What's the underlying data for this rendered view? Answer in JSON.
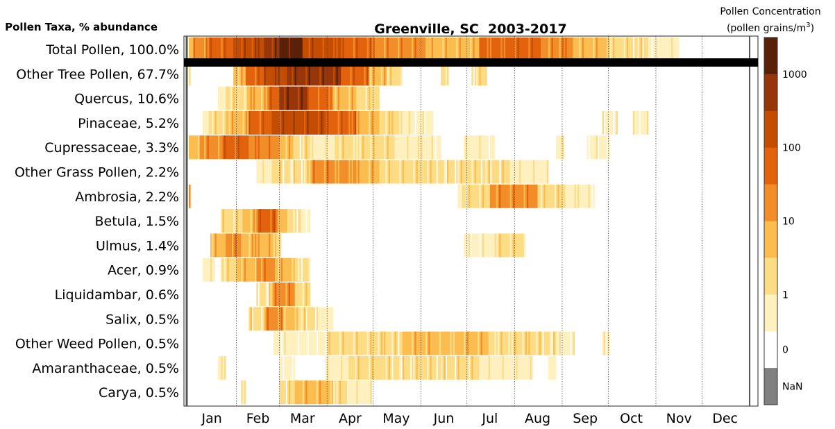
{
  "chart_data": {
    "type": "heatmap",
    "title": "Greenville, SC  2003-2017",
    "ylabel": "Pollen Taxa, % abundance",
    "colorbar_label_line1": "Pollen Concentration",
    "colorbar_label_line2": "(pollen grains/m",
    "colorbar_label_sup": "3",
    "colorbar_label_close": ")",
    "colorbar_ticks": [
      "1000",
      "100",
      "10",
      "1",
      "0",
      "NaN"
    ],
    "months": [
      "Jan",
      "Feb",
      "Mar",
      "Apr",
      "May",
      "Jun",
      "Jul",
      "Aug",
      "Sep",
      "Oct",
      "Nov",
      "Dec"
    ],
    "palette": [
      "#ffffff",
      "#fff0c0",
      "#fddc86",
      "#fbbd4f",
      "#f28e29",
      "#e2620d",
      "#c24d03",
      "#97360a",
      "#5a2008"
    ],
    "nan_color": "#808080",
    "x_units": "day of year",
    "value_units": "color level 0 (0 grains/m3) to 8 (above 1000 grains/m3)",
    "taxa": [
      {
        "label": "Total Pollen, 100.0%",
        "segments": [
          [
            1,
            4,
            3
          ],
          [
            4,
            12,
            4
          ],
          [
            12,
            30,
            5
          ],
          [
            30,
            50,
            6
          ],
          [
            50,
            60,
            7
          ],
          [
            60,
            75,
            8
          ],
          [
            75,
            100,
            6
          ],
          [
            100,
            120,
            5
          ],
          [
            120,
            155,
            4
          ],
          [
            155,
            190,
            3
          ],
          [
            190,
            230,
            5
          ],
          [
            230,
            252,
            4
          ],
          [
            252,
            275,
            3
          ],
          [
            275,
            300,
            2
          ],
          [
            300,
            320,
            1
          ]
        ]
      },
      {
        "label": "Other Tree Pollen, 67.7%",
        "segments": [
          [
            1,
            2,
            2
          ],
          [
            30,
            38,
            3
          ],
          [
            38,
            50,
            5
          ],
          [
            50,
            65,
            6
          ],
          [
            65,
            100,
            7
          ],
          [
            100,
            118,
            5
          ],
          [
            118,
            130,
            3
          ],
          [
            130,
            140,
            2
          ],
          [
            165,
            170,
            2
          ],
          [
            185,
            195,
            2
          ]
        ]
      },
      {
        "label": "Quercus, 10.6%",
        "segments": [
          [
            20,
            25,
            1
          ],
          [
            25,
            40,
            2
          ],
          [
            40,
            52,
            3
          ],
          [
            52,
            60,
            5
          ],
          [
            60,
            78,
            7
          ],
          [
            78,
            95,
            5
          ],
          [
            95,
            110,
            3
          ],
          [
            110,
            125,
            2
          ]
        ]
      },
      {
        "label": "Pinaceae, 5.2%",
        "segments": [
          [
            10,
            15,
            1
          ],
          [
            15,
            25,
            2
          ],
          [
            25,
            40,
            3
          ],
          [
            40,
            55,
            5
          ],
          [
            55,
            90,
            6
          ],
          [
            90,
            110,
            5
          ],
          [
            110,
            125,
            3
          ],
          [
            125,
            140,
            2
          ],
          [
            140,
            160,
            1
          ],
          [
            270,
            280,
            1
          ],
          [
            290,
            300,
            1
          ]
        ]
      },
      {
        "label": "Cupressaceae, 3.3%",
        "segments": [
          [
            1,
            8,
            3
          ],
          [
            8,
            22,
            4
          ],
          [
            22,
            40,
            5
          ],
          [
            40,
            60,
            4
          ],
          [
            60,
            68,
            3
          ],
          [
            68,
            80,
            2
          ],
          [
            80,
            96,
            1
          ],
          [
            96,
            110,
            2
          ],
          [
            110,
            135,
            2
          ],
          [
            135,
            165,
            1
          ],
          [
            180,
            200,
            1
          ],
          [
            240,
            245,
            1
          ],
          [
            260,
            275,
            1
          ]
        ]
      },
      {
        "label": "Other Grass Pollen, 2.2%",
        "segments": [
          [
            45,
            55,
            1
          ],
          [
            55,
            80,
            2
          ],
          [
            80,
            110,
            4
          ],
          [
            110,
            125,
            3
          ],
          [
            125,
            165,
            2
          ],
          [
            165,
            210,
            2
          ],
          [
            210,
            235,
            1
          ]
        ]
      },
      {
        "label": "Ambrosia, 2.2%",
        "segments": [
          [
            1,
            2,
            3
          ],
          [
            175,
            180,
            1
          ],
          [
            180,
            197,
            2
          ],
          [
            197,
            228,
            4
          ],
          [
            228,
            245,
            2
          ],
          [
            245,
            265,
            1
          ]
        ]
      },
      {
        "label": "Betula, 1.5%",
        "segments": [
          [
            22,
            36,
            2
          ],
          [
            36,
            45,
            3
          ],
          [
            45,
            58,
            5
          ],
          [
            58,
            65,
            3
          ],
          [
            65,
            73,
            2
          ],
          [
            73,
            80,
            1
          ]
        ]
      },
      {
        "label": "Ulmus, 1.4%",
        "segments": [
          [
            15,
            25,
            3
          ],
          [
            25,
            35,
            4
          ],
          [
            35,
            44,
            3
          ],
          [
            44,
            56,
            3
          ],
          [
            56,
            62,
            2
          ],
          [
            180,
            200,
            1
          ],
          [
            200,
            220,
            2
          ]
        ]
      },
      {
        "label": "Acer, 0.9%",
        "segments": [
          [
            10,
            18,
            1
          ],
          [
            22,
            32,
            2
          ],
          [
            32,
            45,
            3
          ],
          [
            45,
            58,
            4
          ],
          [
            58,
            70,
            3
          ],
          [
            70,
            80,
            2
          ]
        ]
      },
      {
        "label": "Liquidambar, 0.6%",
        "segments": [
          [
            45,
            55,
            2
          ],
          [
            55,
            70,
            4
          ],
          [
            70,
            80,
            2
          ]
        ]
      },
      {
        "label": "Salix, 0.5%",
        "segments": [
          [
            40,
            50,
            2
          ],
          [
            50,
            62,
            4
          ],
          [
            62,
            72,
            3
          ],
          [
            72,
            85,
            2
          ],
          [
            85,
            95,
            1
          ]
        ]
      },
      {
        "label": "Other Weed Pollen, 0.5%",
        "segments": [
          [
            55,
            90,
            1
          ],
          [
            90,
            140,
            2
          ],
          [
            140,
            195,
            3
          ],
          [
            195,
            240,
            2
          ],
          [
            240,
            252,
            1
          ],
          [
            270,
            275,
            1
          ]
        ]
      },
      {
        "label": "Amaranthaceae, 0.5%",
        "segments": [
          [
            20,
            25,
            1
          ],
          [
            60,
            70,
            1
          ],
          [
            90,
            105,
            1
          ],
          [
            105,
            125,
            2
          ],
          [
            125,
            190,
            2
          ],
          [
            190,
            225,
            1
          ],
          [
            235,
            240,
            1
          ]
        ]
      },
      {
        "label": "Carya, 0.5%",
        "segments": [
          [
            35,
            38,
            1
          ],
          [
            60,
            70,
            2
          ],
          [
            70,
            95,
            3
          ],
          [
            95,
            105,
            2
          ],
          [
            105,
            120,
            1
          ]
        ]
      }
    ]
  }
}
